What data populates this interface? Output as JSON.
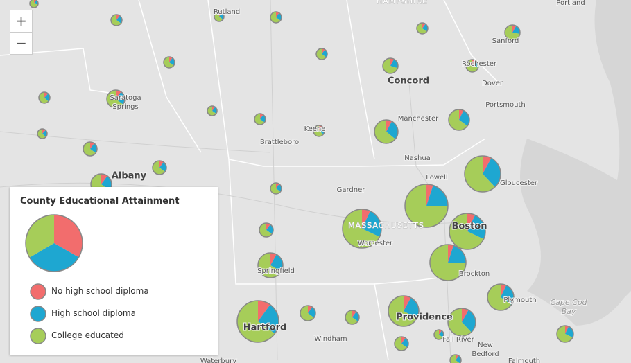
{
  "zoom": {
    "in": "+",
    "out": "−"
  },
  "legend": {
    "title": "County Educational Attainment",
    "items": [
      {
        "label": "No high school diploma",
        "color": "#f26d6d"
      },
      {
        "label": "High school diploma",
        "color": "#1ea7d1"
      },
      {
        "label": "College educated",
        "color": "#a6cd59"
      }
    ]
  },
  "places": [
    {
      "lines": [
        "HAMPSHIRE"
      ],
      "kind": "state"
    },
    {
      "lines": [
        "Rutland"
      ]
    },
    {
      "lines": [
        "Portland"
      ]
    },
    {
      "lines": [
        "Sanford"
      ]
    },
    {
      "lines": [
        "Rochester"
      ]
    },
    {
      "lines": [
        "Concord"
      ],
      "kind": "city"
    },
    {
      "lines": [
        "Dover"
      ]
    },
    {
      "lines": [
        "Saratoga",
        "Springs"
      ]
    },
    {
      "lines": [
        "Portsmouth"
      ]
    },
    {
      "lines": [
        "Manchester"
      ]
    },
    {
      "lines": [
        "Keene"
      ]
    },
    {
      "lines": [
        "Brattleboro"
      ]
    },
    {
      "lines": [
        "Nashua"
      ]
    },
    {
      "lines": [
        "Albany"
      ],
      "kind": "city"
    },
    {
      "lines": [
        "Lowell"
      ]
    },
    {
      "lines": [
        "Gloucester"
      ]
    },
    {
      "lines": [
        "Gardner"
      ]
    },
    {
      "lines": [
        "MASSACHUSETTS"
      ],
      "kind": "state"
    },
    {
      "lines": [
        "Boston"
      ],
      "kind": "city"
    },
    {
      "lines": [
        "Worcester"
      ]
    },
    {
      "lines": [
        "Springfield"
      ]
    },
    {
      "lines": [
        "Brockton"
      ]
    },
    {
      "lines": [
        "Plymouth"
      ]
    },
    {
      "lines": [
        "Cape Cod",
        "Bay"
      ],
      "kind": "water"
    },
    {
      "lines": [
        "Hartford"
      ],
      "kind": "city"
    },
    {
      "lines": [
        "Providence"
      ],
      "kind": "city"
    },
    {
      "lines": [
        "Windham"
      ]
    },
    {
      "lines": [
        "Fall River"
      ]
    },
    {
      "lines": [
        "New",
        "Bedford"
      ]
    },
    {
      "lines": [
        "Waterbury"
      ]
    },
    {
      "lines": [
        "Falmouth"
      ]
    }
  ],
  "pies": [
    {
      "values": [
        10,
        20,
        70
      ]
    },
    {
      "values": [
        10,
        25,
        65
      ]
    },
    {
      "values": [
        10,
        25,
        65
      ]
    },
    {
      "values": [
        10,
        25,
        65
      ]
    },
    {
      "values": [
        10,
        25,
        65
      ]
    },
    {
      "values": [
        8,
        20,
        72
      ]
    },
    {
      "values": [
        10,
        25,
        65
      ]
    },
    {
      "values": [
        10,
        25,
        65
      ]
    },
    {
      "values": [
        8,
        22,
        70
      ]
    },
    {
      "values": [
        8,
        22,
        70
      ]
    },
    {
      "values": [
        12,
        25,
        63
      ]
    },
    {
      "values": [
        10,
        25,
        65
      ]
    },
    {
      "values": [
        10,
        25,
        65
      ]
    },
    {
      "values": [
        10,
        25,
        65
      ]
    },
    {
      "values": [
        10,
        25,
        65
      ]
    },
    {
      "values": [
        8,
        28,
        64
      ]
    },
    {
      "values": [
        7,
        28,
        65
      ]
    },
    {
      "values": [
        12,
        25,
        63
      ]
    },
    {
      "values": [
        10,
        25,
        65
      ]
    },
    {
      "values": [
        10,
        25,
        65
      ]
    },
    {
      "values": [
        8,
        30,
        62
      ]
    },
    {
      "values": [
        10,
        25,
        65
      ]
    },
    {
      "values": [
        10,
        25,
        65
      ]
    },
    {
      "values": [
        5,
        20,
        75
      ]
    },
    {
      "values": [
        7,
        25,
        68
      ]
    },
    {
      "values": [
        7,
        25,
        68
      ]
    },
    {
      "values": [
        10,
        25,
        65
      ]
    },
    {
      "values": [
        5,
        20,
        75
      ]
    },
    {
      "values": [
        8,
        25,
        67
      ]
    },
    {
      "values": [
        7,
        28,
        65
      ]
    },
    {
      "values": [
        10,
        25,
        65
      ]
    },
    {
      "values": [
        10,
        25,
        65
      ]
    },
    {
      "values": [
        10,
        25,
        65
      ]
    },
    {
      "values": [
        8,
        25,
        67
      ]
    },
    {
      "values": [
        8,
        30,
        62
      ]
    },
    {
      "values": [
        7,
        25,
        68
      ]
    },
    {
      "values": [
        10,
        25,
        65
      ]
    },
    {
      "values": [
        10,
        25,
        65
      ]
    },
    {
      "values": [
        10,
        25,
        65
      ]
    }
  ]
}
